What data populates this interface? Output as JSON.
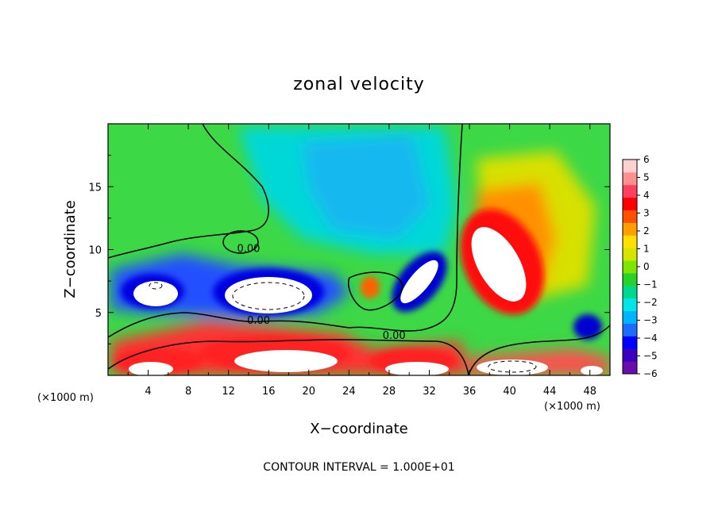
{
  "chart_data": {
    "type": "heatmap",
    "title": "zonal velocity",
    "xlabel": "X−coordinate",
    "ylabel": "Z−coordinate",
    "x_unit_left": "(×1000 m)",
    "x_unit_right": "(×1000 m)",
    "xlim": [
      0,
      50
    ],
    "ylim": [
      0,
      20
    ],
    "x_ticks": [
      {
        "value": 4,
        "label": "4"
      },
      {
        "value": 8,
        "label": "8"
      },
      {
        "value": 12,
        "label": "12"
      },
      {
        "value": 16,
        "label": "16"
      },
      {
        "value": 20,
        "label": "20"
      },
      {
        "value": 24,
        "label": "24"
      },
      {
        "value": 28,
        "label": "28"
      },
      {
        "value": 32,
        "label": "32"
      },
      {
        "value": 36,
        "label": "36"
      },
      {
        "value": 40,
        "label": "40"
      },
      {
        "value": 44,
        "label": "44"
      },
      {
        "value": 48,
        "label": "48"
      }
    ],
    "y_ticks": [
      {
        "value": 5,
        "label": "5"
      },
      {
        "value": 10,
        "label": "10"
      },
      {
        "value": 15,
        "label": "15"
      }
    ],
    "colorbar": {
      "min": -6,
      "max": 6,
      "levels": [
        {
          "value": 6,
          "label": "6"
        },
        {
          "value": 5,
          "label": "5"
        },
        {
          "value": 4,
          "label": "4"
        },
        {
          "value": 3,
          "label": "3"
        },
        {
          "value": 2,
          "label": "2"
        },
        {
          "value": 1,
          "label": "1"
        },
        {
          "value": 0,
          "label": "0"
        },
        {
          "value": -1,
          "label": "−1"
        },
        {
          "value": -2,
          "label": "−2"
        },
        {
          "value": -3,
          "label": "−3"
        },
        {
          "value": -4,
          "label": "−4"
        },
        {
          "value": -5,
          "label": "−5"
        },
        {
          "value": -6,
          "label": "−6"
        }
      ],
      "colors": [
        "#6a0dad",
        "#3a00c0",
        "#0000ff",
        "#1e6cff",
        "#00b4ff",
        "#00e6e6",
        "#00d890",
        "#28d228",
        "#7ee600",
        "#d4e600",
        "#ffe000",
        "#ffa000",
        "#ff5000",
        "#ff0000",
        "#ff4060",
        "#ff9090",
        "#ffd0d0"
      ]
    },
    "contour_labels": [
      {
        "x": 14,
        "y": 9.8,
        "text": "0.00"
      },
      {
        "x": 15,
        "y": 4.1,
        "text": "0.00"
      },
      {
        "x": 28.5,
        "y": 2.9,
        "text": "0.00"
      }
    ],
    "contour_interval_note": "CONTOUR INTERVAL = 1.000E+01",
    "features": [
      {
        "x": 0,
        "y": 20,
        "v": 0.5
      },
      {
        "x": 4,
        "y": 5.4,
        "v": -5
      },
      {
        "x": 14,
        "y": 5.8,
        "v": -5
      },
      {
        "x": 29,
        "y": 6.5,
        "v": -5
      },
      {
        "x": 40,
        "y": 8.6,
        "v": 5
      },
      {
        "x": 48,
        "y": 3.6,
        "v": -5
      },
      {
        "x": 22,
        "y": 1.6,
        "v": 5
      },
      {
        "x": 14,
        "y": 1.5,
        "v": 5
      },
      {
        "x": 41,
        "y": 1.1,
        "v": 5
      }
    ]
  }
}
